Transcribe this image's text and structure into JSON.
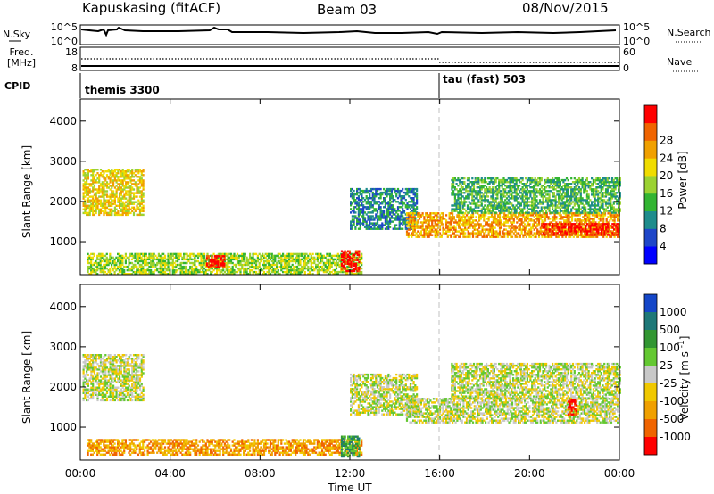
{
  "header": {
    "radar": "Kapuskasing (fitACF)",
    "beam": "Beam 03",
    "date": "08/Nov/2015"
  },
  "noise_panel": {
    "left_label": "N.Sky",
    "left_ticks": [
      "10^5",
      "10^0"
    ],
    "right_label": "N.Search",
    "right_ticks": [
      "10^5",
      "10^0"
    ]
  },
  "freq_panel": {
    "left_label_line1": "Freq.",
    "left_label_line2": "[MHz]",
    "left_ticks": [
      "18",
      "8"
    ],
    "right_label": "Nave",
    "right_ticks": [
      "60",
      "0"
    ]
  },
  "cpid_panel": {
    "label": "CPID",
    "modes": [
      {
        "name": "themis 3300",
        "start_hour": 0
      },
      {
        "name": "tau (fast) 503",
        "start_hour": 16
      }
    ]
  },
  "x_axis": {
    "label": "Time UT",
    "ticks": [
      "00:00",
      "04:00",
      "08:00",
      "12:00",
      "16:00",
      "20:00",
      "00:00"
    ]
  },
  "chart_data": [
    {
      "type": "heatmap",
      "name": "power",
      "ylabel": "Slant Range [km]",
      "yticks": [
        1000,
        2000,
        3000,
        4000
      ],
      "ylim": [
        180,
        4550
      ],
      "xlim": [
        0,
        24
      ],
      "colorbar": {
        "label": "Power [dB]",
        "ticks": [
          "4",
          "8",
          "12",
          "16",
          "20",
          "24",
          "28"
        ],
        "colors": [
          "#0000ff",
          "#1e46c8",
          "#1e8c8c",
          "#32b432",
          "#9bd232",
          "#f0dc00",
          "#f0a000",
          "#f06400",
          "#ff0000"
        ]
      },
      "regions": [
        {
          "t0": 0.1,
          "t1": 2.8,
          "r0": 1650,
          "r1": 2800,
          "level": 5
        },
        {
          "t0": 0.3,
          "t1": 12.5,
          "r0": 180,
          "r1": 700,
          "level": 4
        },
        {
          "t0": 5.6,
          "t1": 6.4,
          "r0": 350,
          "r1": 650,
          "level": 8
        },
        {
          "t0": 11.6,
          "t1": 12.4,
          "r0": 250,
          "r1": 750,
          "level": 8
        },
        {
          "t0": 12.0,
          "t1": 15.0,
          "r0": 1300,
          "r1": 2300,
          "level": 2
        },
        {
          "t0": 14.5,
          "t1": 24.0,
          "r0": 1100,
          "r1": 1700,
          "level": 6
        },
        {
          "t0": 20.5,
          "t1": 24.0,
          "r0": 1150,
          "r1": 1450,
          "level": 8
        },
        {
          "t0": 16.5,
          "t1": 24.0,
          "r0": 1700,
          "r1": 2600,
          "level": 3
        }
      ]
    },
    {
      "type": "heatmap",
      "name": "velocity",
      "ylabel": "Slant Range [km]",
      "yticks": [
        1000,
        2000,
        3000,
        4000
      ],
      "ylim": [
        180,
        4550
      ],
      "xlim": [
        0,
        24
      ],
      "colorbar": {
        "label": "Velocity [m s^-1]",
        "ticks": [
          "1000",
          "500",
          "100",
          "25",
          "-25",
          "-100",
          "-500",
          "-1000"
        ],
        "colors": [
          "#1446c8",
          "#1e7878",
          "#329632",
          "#64c832",
          "#c8c8c8",
          "#f0c800",
          "#f0a000",
          "#f06400",
          "#ff0000"
        ]
      },
      "regions": [
        {
          "t0": 0.1,
          "t1": 2.8,
          "r0": 1650,
          "r1": 2800,
          "level": 4
        },
        {
          "t0": 0.3,
          "t1": 12.5,
          "r0": 300,
          "r1": 700,
          "level": 6
        },
        {
          "t0": 11.6,
          "t1": 12.4,
          "r0": 250,
          "r1": 750,
          "level": 2
        },
        {
          "t0": 12.0,
          "t1": 15.0,
          "r0": 1300,
          "r1": 2300,
          "level": 4
        },
        {
          "t0": 14.5,
          "t1": 24.0,
          "r0": 1100,
          "r1": 1700,
          "level": 4
        },
        {
          "t0": 16.5,
          "t1": 24.0,
          "r0": 1700,
          "r1": 2600,
          "level": 4
        },
        {
          "t0": 21.7,
          "t1": 22.1,
          "r0": 1300,
          "r1": 1700,
          "level": 8
        }
      ]
    }
  ]
}
